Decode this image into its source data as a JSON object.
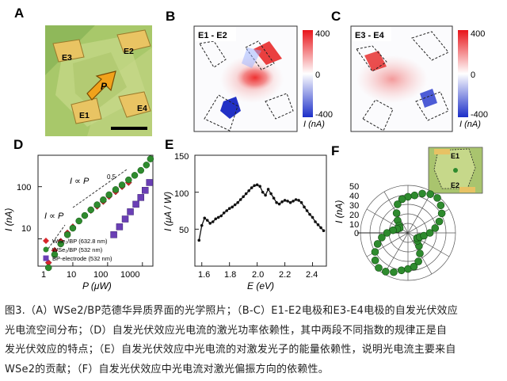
{
  "panels": {
    "A": {
      "label": "A",
      "electrodes": [
        "E3",
        "E2",
        "E1",
        "E4"
      ],
      "arrow_label": "P"
    },
    "B": {
      "label": "B",
      "title": "E1 - E2",
      "cbar_top": "400",
      "cbar_mid": "0",
      "cbar_bot": "-400",
      "cbar_unit": "I (nA)"
    },
    "C": {
      "label": "C",
      "title": "E3 - E4",
      "cbar_top": "400",
      "cbar_mid": "0",
      "cbar_bot": "-400",
      "cbar_unit": "I (nA)"
    },
    "D": {
      "label": "D",
      "ylabel": "I (nA)",
      "xlabel": "P (μW)",
      "yticks": [
        "10",
        "100"
      ],
      "xticks": [
        "1",
        "10",
        "100",
        "1000"
      ],
      "annot_high": "I ∝ P",
      "annot_high_exp": "0.5",
      "annot_low": "I ∝ P",
      "legend": [
        "WSe₂/BP (632.8 nm)",
        "WSe₂/BP (532 nm)",
        "BP-electrode (532 nm)"
      ],
      "colors": {
        "red": "#d8262b",
        "green": "#2e8b2e",
        "purple": "#6a3fb5"
      }
    },
    "E": {
      "label": "E",
      "ylabel": "I (μA / W)",
      "xlabel": "E (eV)",
      "yticks": [
        "50",
        "100",
        "150"
      ],
      "xticks": [
        "1.6",
        "1.8",
        "2.0",
        "2.2",
        "2.4"
      ]
    },
    "F": {
      "label": "F",
      "ylabel": "I (nA)",
      "rticks": [
        "0",
        "10",
        "20",
        "30",
        "40",
        "50"
      ],
      "inset_labels": [
        "E1",
        "E2"
      ]
    }
  },
  "chart_data": [
    {
      "type": "scatter",
      "panel": "D",
      "xlabel": "P (μW)",
      "ylabel": "I (nA)",
      "xscale": "log",
      "yscale": "log",
      "xlim": [
        1,
        2000
      ],
      "ylim": [
        3,
        400
      ],
      "series": [
        {
          "name": "WSe₂/BP (632.8 nm)",
          "color": "#d8262b",
          "x": [
            2,
            3,
            4.5,
            7,
            10,
            15,
            22,
            33,
            50,
            75,
            110,
            170,
            260,
            400
          ],
          "y": [
            3.5,
            6,
            9,
            13,
            17,
            22,
            28,
            35,
            42,
            52,
            65,
            80,
            100,
            120
          ]
        },
        {
          "name": "WSe₂/BP (532 nm)",
          "color": "#2e8b2e",
          "x": [
            2,
            3,
            4.5,
            7,
            10,
            15,
            22,
            33,
            50,
            75,
            110,
            170,
            260,
            400,
            600,
            900,
            1300,
            1700
          ],
          "y": [
            2.8,
            5,
            8,
            12,
            16,
            22,
            28,
            36,
            45,
            56,
            70,
            88,
            108,
            135,
            165,
            205,
            260,
            340
          ]
        },
        {
          "name": "BP-electrode (532 nm)",
          "color": "#6a3fb5",
          "x": [
            150,
            220,
            320,
            450,
            650,
            900,
            1200,
            1600
          ],
          "y": [
            12,
            17,
            24,
            33,
            46,
            62,
            85,
            120
          ]
        }
      ]
    },
    {
      "type": "line",
      "panel": "E",
      "xlabel": "E (eV)",
      "ylabel": "I (μA / W)",
      "xlim": [
        1.55,
        2.5
      ],
      "ylim": [
        0,
        150
      ],
      "x": [
        1.58,
        1.6,
        1.62,
        1.64,
        1.66,
        1.68,
        1.7,
        1.72,
        1.74,
        1.76,
        1.78,
        1.8,
        1.82,
        1.84,
        1.86,
        1.88,
        1.9,
        1.92,
        1.94,
        1.96,
        1.98,
        2.0,
        2.02,
        2.04,
        2.06,
        2.08,
        2.1,
        2.12,
        2.14,
        2.16,
        2.18,
        2.2,
        2.22,
        2.24,
        2.26,
        2.28,
        2.3,
        2.32,
        2.34,
        2.36,
        2.38,
        2.4,
        2.42,
        2.44,
        2.46,
        2.48
      ],
      "y": [
        35,
        55,
        65,
        62,
        58,
        60,
        64,
        66,
        68,
        72,
        75,
        78,
        80,
        83,
        86,
        90,
        94,
        98,
        102,
        106,
        109,
        110,
        108,
        100,
        96,
        104,
        98,
        92,
        86,
        84,
        87,
        89,
        88,
        86,
        88,
        90,
        89,
        86,
        80,
        75,
        70,
        66,
        60,
        56,
        52,
        48
      ]
    },
    {
      "type": "scatter",
      "panel": "F",
      "polar": true,
      "ylabel": "I (nA)",
      "rlim": [
        0,
        50
      ],
      "theta_deg": [
        0,
        10,
        20,
        30,
        40,
        50,
        60,
        70,
        80,
        90,
        100,
        110,
        120,
        130,
        140,
        150,
        160,
        170,
        180,
        190,
        200,
        210,
        220,
        230,
        240,
        250,
        260,
        270,
        280,
        290,
        300,
        310,
        320,
        330,
        340,
        350
      ],
      "r": [
        38,
        36,
        32,
        24,
        17,
        12,
        10,
        12,
        16,
        22,
        28,
        34,
        40,
        45,
        48,
        47,
        44,
        40,
        38,
        36,
        32,
        25,
        18,
        13,
        11,
        13,
        17,
        23,
        29,
        35,
        41,
        45,
        48,
        47,
        44,
        40
      ]
    }
  ],
  "caption": {
    "lines": [
      "图3.（A）WSe2/BP范德华异质界面的光学照片；（B-C）E1-E2电极和E3-E4电极的自发光伏效应",
      "光电流空间分布；（D）自发光伏效应光电流的激光功率依赖性，其中两段不同指数的规律正是自",
      "发光伏效应的特点；（E）自发光伏效应中光电流的对激发光子的能量依赖性，说明光电流主要来自",
      "WSe2的贡献；（F）自发光伏效应中光电流对激光偏振方向的依赖性。"
    ]
  }
}
